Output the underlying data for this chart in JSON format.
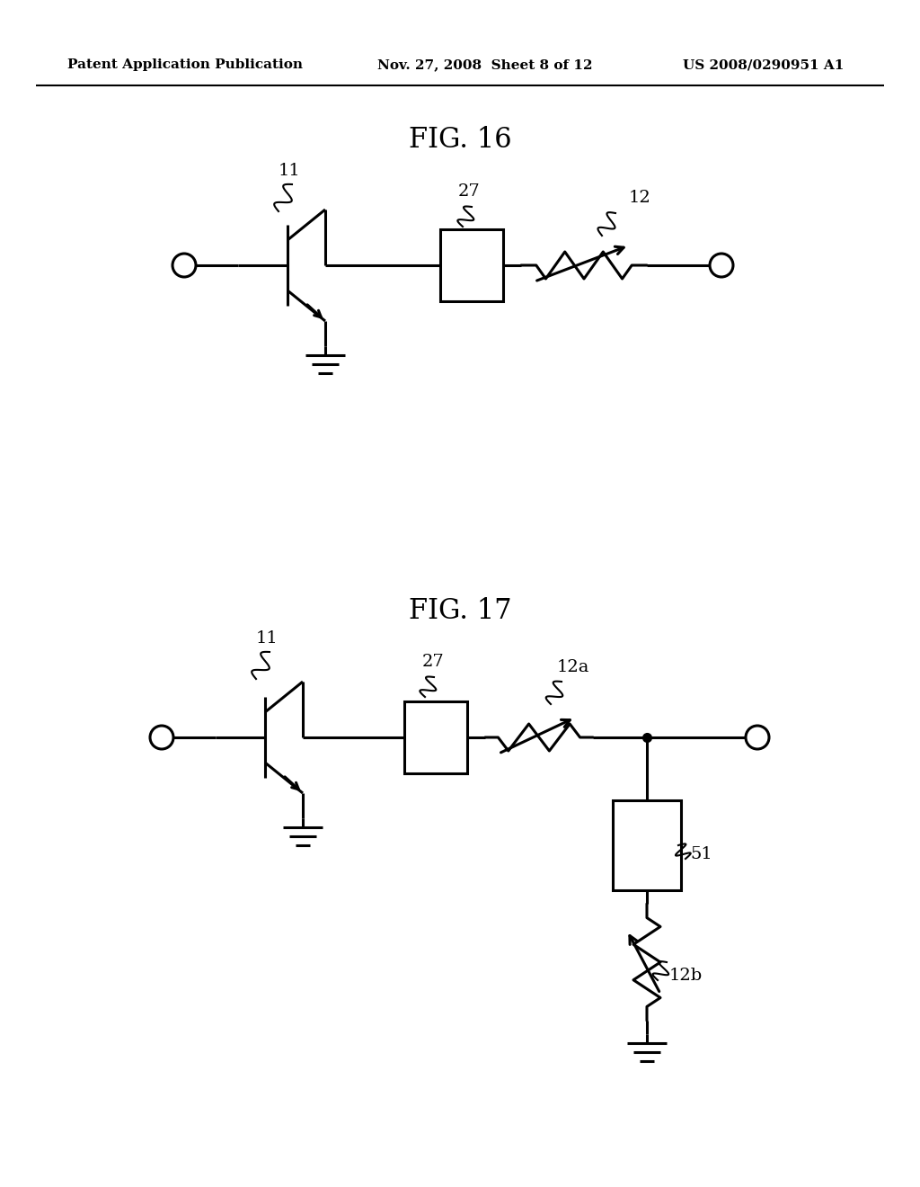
{
  "background_color": "#ffffff",
  "header_text": "Patent Application Publication",
  "header_date": "Nov. 27, 2008  Sheet 8 of 12",
  "header_patent": "US 2008/0290951 A1",
  "fig16_title": "FIG. 16",
  "fig17_title": "FIG. 17",
  "line_color": "#000000",
  "line_width": 2.2,
  "font_family": "DejaVu Serif"
}
